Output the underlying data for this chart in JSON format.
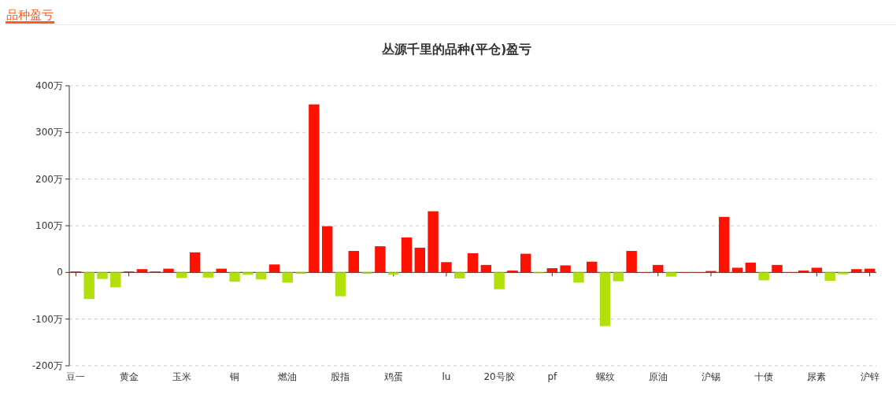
{
  "chart_data": {
    "type": "bar",
    "title": "丛源千里的品种(平仓)盈亏",
    "annotations": [
      "品种盈亏"
    ],
    "categories": [
      "豆一",
      null,
      null,
      null,
      "黄金",
      null,
      null,
      null,
      "玉米",
      null,
      null,
      null,
      "铜",
      null,
      null,
      null,
      "燃油",
      null,
      null,
      null,
      "股指",
      null,
      null,
      null,
      "鸡蛋",
      null,
      null,
      null,
      "lu",
      null,
      null,
      null,
      "20号胶",
      null,
      null,
      null,
      "pf",
      null,
      null,
      null,
      "螺纹",
      null,
      null,
      null,
      "原油",
      null,
      null,
      null,
      "沪锡",
      null,
      null,
      null,
      "十债",
      null,
      null,
      null,
      "尿素",
      null,
      null,
      null,
      "沪锌"
    ],
    "values": [
      2,
      -57,
      -14,
      -32,
      2,
      7,
      2,
      8,
      -12,
      43,
      -11,
      8,
      -20,
      -5,
      -15,
      17,
      -22,
      -3,
      360,
      99,
      -51,
      46,
      -3,
      56,
      -5,
      75,
      53,
      131,
      22,
      -13,
      41,
      16,
      -36,
      4,
      40,
      -2,
      9,
      15,
      -22,
      23,
      -115,
      -19,
      46,
      0,
      16,
      -9,
      0,
      0,
      3,
      119,
      10,
      21,
      -17,
      16,
      0,
      4,
      10,
      -18,
      -4,
      7,
      8
    ],
    "colors": [
      "#ff1100",
      "#b2e00a",
      "#b2e00a",
      "#b2e00a",
      "#ff1100",
      "#ff1100",
      "#ff1100",
      "#ff1100",
      "#b2e00a",
      "#ff1100",
      "#b2e00a",
      "#ff1100",
      "#b2e00a",
      "#b2e00a",
      "#b2e00a",
      "#ff1100",
      "#b2e00a",
      "#b2e00a",
      "#ff1100",
      "#ff1100",
      "#b2e00a",
      "#ff1100",
      "#b2e00a",
      "#ff1100",
      "#b2e00a",
      "#ff1100",
      "#ff1100",
      "#ff1100",
      "#ff1100",
      "#b2e00a",
      "#ff1100",
      "#ff1100",
      "#b2e00a",
      "#ff1100",
      "#ff1100",
      "#b2e00a",
      "#ff1100",
      "#ff1100",
      "#b2e00a",
      "#ff1100",
      "#b2e00a",
      "#b2e00a",
      "#ff1100",
      "#ff1100",
      "#ff1100",
      "#b2e00a",
      "#ff1100",
      "#ff1100",
      "#ff1100",
      "#ff1100",
      "#ff1100",
      "#ff1100",
      "#b2e00a",
      "#ff1100",
      "#ff1100",
      "#ff1100",
      "#ff1100",
      "#b2e00a",
      "#b2e00a",
      "#ff1100",
      "#ff1100"
    ],
    "ylim": [
      -200,
      400
    ],
    "yticks": [
      {
        "value": -200,
        "label": "-200万"
      },
      {
        "value": -100,
        "label": "-100万"
      },
      {
        "value": 0,
        "label": "0"
      },
      {
        "value": 100,
        "label": "100万"
      },
      {
        "value": 200,
        "label": "200万"
      },
      {
        "value": 300,
        "label": "300万"
      },
      {
        "value": 400,
        "label": "400万"
      }
    ],
    "grid": "y"
  }
}
